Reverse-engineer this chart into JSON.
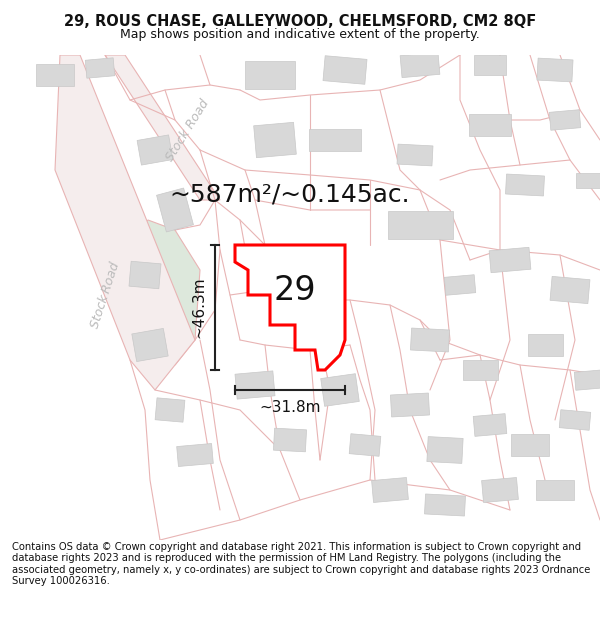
{
  "title_line1": "29, ROUS CHASE, GALLEYWOOD, CHELMSFORD, CM2 8QF",
  "title_line2": "Map shows position and indicative extent of the property.",
  "footer_text": "Contains OS data © Crown copyright and database right 2021. This information is subject to Crown copyright and database rights 2023 and is reproduced with the permission of HM Land Registry. The polygons (including the associated geometry, namely x, y co-ordinates) are subject to Crown copyright and database rights 2023 Ordnance Survey 100026316.",
  "area_label": "~587m²/~0.145ac.",
  "plot_number": "29",
  "dim_vertical": "~46.3m",
  "dim_horizontal": "~31.8m",
  "bg_color": "#ffffff",
  "map_bg": "#ffffff",
  "parcel_color": "#e8b4b4",
  "building_color": "#d8d8d8",
  "highlight_color": "#ff0000",
  "highlight_fill": "#ffffff",
  "dim_line_color": "#222222",
  "road_label_color": "#aaaaaa",
  "green_color": "#dde8dc",
  "title_fontsize": 10.5,
  "subtitle_fontsize": 9,
  "footer_fontsize": 7.2,
  "area_fontsize": 18,
  "plot_num_fontsize": 24,
  "dim_fontsize": 11,
  "stock_road_fontsize": 9
}
